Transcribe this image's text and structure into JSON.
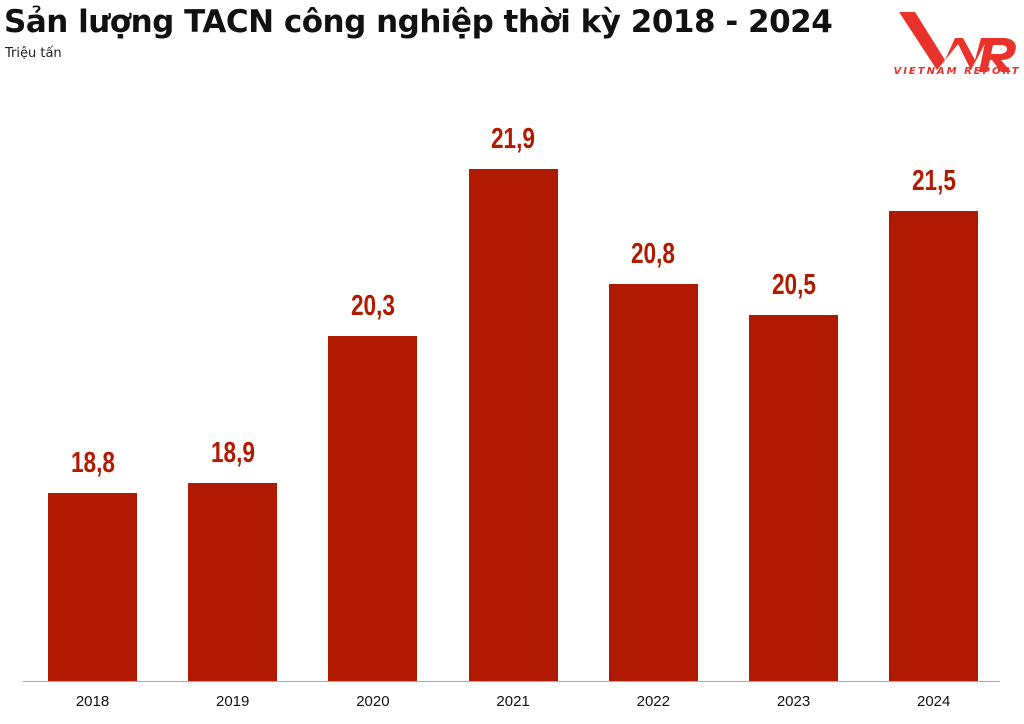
{
  "header": {
    "title": "Sản lượng TACN công nghiệp thời kỳ 2018 - 2024",
    "subtitle": "Triệu tấn"
  },
  "logo": {
    "mark": "VNR",
    "text": "VIETNAM REPORT",
    "color": "#e8322b"
  },
  "colors": {
    "bar": "#b01a00",
    "label": "#b01a00"
  },
  "chart_data": {
    "type": "bar",
    "title": "Sản lượng TACN công nghiệp thời kỳ 2018 - 2024",
    "subtitle": "Triệu tấn",
    "xlabel": "",
    "ylabel": "Triệu tấn",
    "categories": [
      "2018",
      "2019",
      "2020",
      "2021",
      "2022",
      "2023",
      "2024"
    ],
    "values": [
      18.8,
      18.9,
      20.3,
      21.9,
      20.8,
      20.5,
      21.5
    ],
    "value_labels": [
      "18,8",
      "18,9",
      "20,3",
      "21,9",
      "20,8",
      "20,5",
      "21,5"
    ],
    "grid": false,
    "legend": "none"
  }
}
